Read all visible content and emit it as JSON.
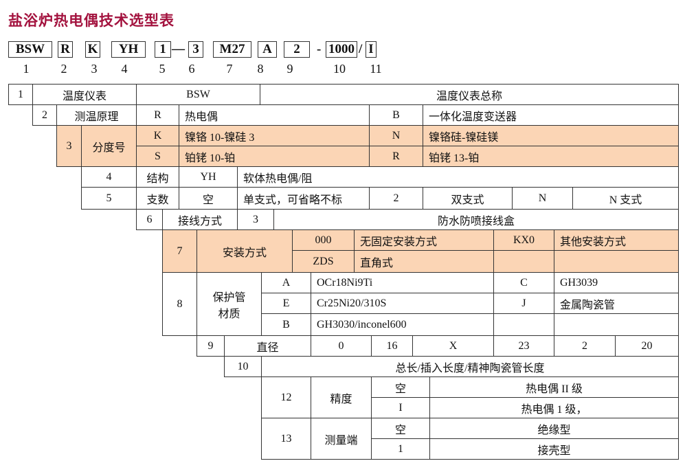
{
  "title": "盐浴炉热电偶技术选型表",
  "code": {
    "boxes": [
      "BSW",
      "R",
      "K",
      "YH",
      "1",
      "3",
      "M27",
      "A",
      "2",
      "1000",
      "I"
    ],
    "separators": [
      "—",
      "-",
      "/"
    ],
    "positions": [
      "1",
      "2",
      "3",
      "4",
      "5",
      "6",
      "7",
      "8",
      "9",
      "10",
      "11"
    ]
  },
  "colors": {
    "title": "#a3123e",
    "highlight": "#fbd5b5"
  },
  "table": {
    "r1": [
      "1",
      "温度仪表",
      "BSW",
      "温度仪表总称"
    ],
    "r2": [
      "2",
      "测温原理",
      "R",
      "热电偶",
      "B",
      "一体化温度变送器"
    ],
    "r3": [
      "3",
      "分度号",
      "K",
      "镍铬 10-镍硅 3",
      "N",
      "镍铬硅-镍硅镁",
      "S",
      "铂铑 10-铂",
      "R",
      "铂铑 13-铂"
    ],
    "r4": [
      "4",
      "结构",
      "YH",
      "软体热电偶/阻"
    ],
    "r5": [
      "5",
      "支数",
      "空",
      "单支式，可省略不标",
      "2",
      "双支式",
      "N",
      "N 支式"
    ],
    "r6": [
      "6",
      "接线方式",
      "3",
      "防水防喷接线盒"
    ],
    "r7": [
      "7",
      "安装方式",
      "000",
      "无固定安装方式",
      "KX0",
      "其他安装方式",
      "ZDS",
      "直角式"
    ],
    "r8": [
      "8",
      "保护管\n材质",
      "A",
      "OCr18Ni9Ti",
      "C",
      "GH3039",
      "E",
      "Cr25Ni20/310S",
      "J",
      "金属陶瓷管",
      "B",
      "GH3030/inconel600"
    ],
    "r9": [
      "9",
      "直径",
      "0",
      "16",
      "X",
      "23",
      "2",
      "20"
    ],
    "r10": [
      "10",
      "总长/插入长度/精神陶瓷管长度"
    ],
    "r12": [
      "12",
      "精度",
      "空",
      "热电偶 II 级",
      "I",
      "热电偶 1 级，"
    ],
    "r13": [
      "13",
      "测量端",
      "空",
      "绝缘型",
      "1",
      "接壳型"
    ]
  }
}
